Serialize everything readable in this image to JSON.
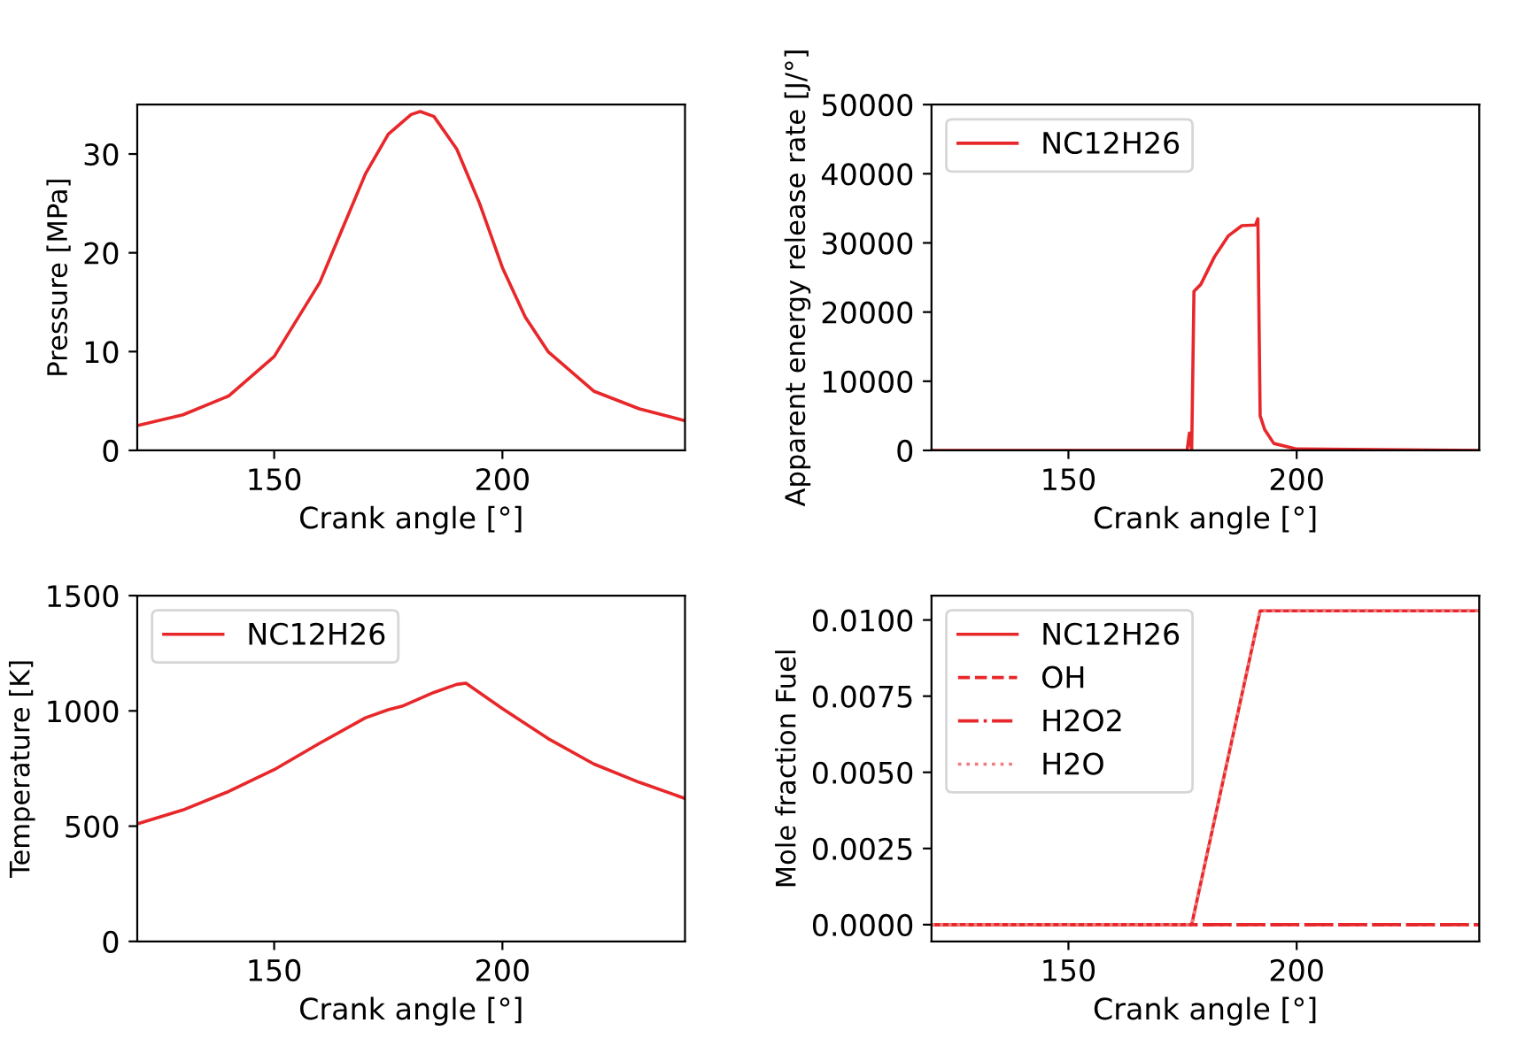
{
  "chart_data": [
    {
      "type": "line",
      "xlabel": "Crank angle [°]",
      "ylabel": "Pressure [MPa]",
      "xlim": [
        120,
        240
      ],
      "ylim": [
        0,
        35
      ],
      "xticks": [
        150,
        200
      ],
      "yticks": [
        0,
        10,
        20,
        30
      ],
      "legend": false,
      "grid": false,
      "series": [
        {
          "color": "#e8272a",
          "line_style": "solid",
          "x": [
            120,
            130,
            140,
            150,
            160,
            165,
            170,
            175,
            180,
            182,
            185,
            190,
            195,
            200,
            205,
            210,
            220,
            230,
            240
          ],
          "values": [
            2.5,
            3.6,
            5.5,
            9.5,
            17,
            22.5,
            28,
            32,
            34,
            34.3,
            33.8,
            30.5,
            25,
            18.5,
            13.5,
            10,
            6,
            4.2,
            3
          ]
        }
      ]
    },
    {
      "type": "line",
      "xlabel": "Crank angle [°]",
      "ylabel": "Apparent energy release rate [J/°]",
      "xlim": [
        120,
        240
      ],
      "ylim": [
        0,
        50000
      ],
      "xticks": [
        150,
        200
      ],
      "yticks": [
        0,
        10000,
        20000,
        30000,
        40000,
        50000
      ],
      "legend": "top left",
      "grid": false,
      "series": [
        {
          "name": "NC12H26",
          "color": "#e8272a",
          "line_style": "solid",
          "x": [
            120,
            176,
            176.5,
            177,
            177.5,
            179,
            182,
            185,
            188,
            191,
            191.5,
            192,
            193,
            195,
            200,
            240
          ],
          "values": [
            0,
            0,
            2500,
            0,
            23000,
            24000,
            28000,
            31000,
            32500,
            32600,
            33500,
            5000,
            3000,
            1000,
            200,
            0
          ]
        }
      ]
    },
    {
      "type": "line",
      "xlabel": "Crank angle [°]",
      "ylabel": "Temperature [K]",
      "xlim": [
        120,
        240
      ],
      "ylim": [
        0,
        1500
      ],
      "xticks": [
        150,
        200
      ],
      "yticks": [
        0,
        500,
        1000,
        1500
      ],
      "legend": "top left",
      "grid": false,
      "series": [
        {
          "name": "NC12H26",
          "color": "#e8272a",
          "line_style": "solid",
          "x": [
            120,
            130,
            140,
            150,
            160,
            170,
            175,
            178,
            185,
            190,
            192,
            200,
            210,
            220,
            230,
            240
          ],
          "values": [
            510,
            570,
            650,
            745,
            860,
            970,
            1005,
            1020,
            1080,
            1115,
            1120,
            1010,
            880,
            770,
            690,
            620
          ]
        }
      ]
    },
    {
      "type": "line",
      "xlabel": "Crank angle [°]",
      "ylabel": "Mole fraction Fuel",
      "xlim": [
        120,
        240
      ],
      "ylim": [
        -0.00055,
        0.0108
      ],
      "xticks": [
        150,
        200
      ],
      "yticks": [
        {
          "value": 0,
          "label": "0.0000"
        },
        {
          "value": 0.0025,
          "label": "0.0025"
        },
        {
          "value": 0.005,
          "label": "0.0050"
        },
        {
          "value": 0.0075,
          "label": "0.0075"
        },
        {
          "value": 0.01,
          "label": "0.0100"
        }
      ],
      "legend": "top left",
      "grid": false,
      "series": [
        {
          "name": "NC12H26",
          "color": "#e8272a",
          "line_style": "solid",
          "x": [
            120,
            177,
            192,
            240
          ],
          "values": [
            0,
            0,
            0.0103,
            0.0103
          ]
        },
        {
          "name": "OH",
          "color": "#e8272a",
          "line_style": "dashed",
          "x": [
            120,
            240
          ],
          "values": [
            0,
            0
          ]
        },
        {
          "name": "H2O2",
          "color": "#e8272a",
          "line_style": "dashdot",
          "x": [
            120,
            240
          ],
          "values": [
            0,
            0
          ]
        },
        {
          "name": "H2O",
          "color": "#f07a7c",
          "line_style": "dotted",
          "x": [
            120,
            177,
            192,
            240
          ],
          "values": [
            0,
            0,
            0.0103,
            0.0103
          ]
        }
      ]
    }
  ]
}
